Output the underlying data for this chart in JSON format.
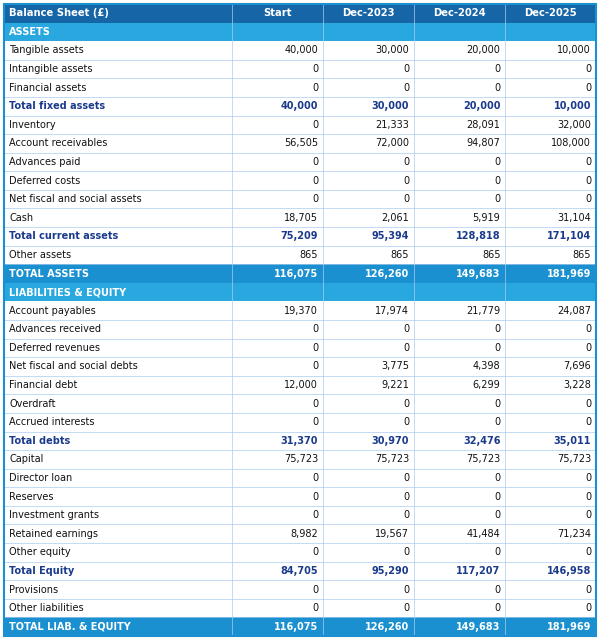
{
  "columns": [
    "Balance Sheet (£)",
    "Start",
    "Dec-2023",
    "Dec-2024",
    "Dec-2025"
  ],
  "header_bg": "#1565a7",
  "header_text": "#ffffff",
  "section_bg": "#29a8e0",
  "section_text": "#ffffff",
  "total_bg": "#1a90d0",
  "total_text": "#ffffff",
  "subtotal_text": "#1a3a8c",
  "data_text": "#111111",
  "row_bg": "#ffffff",
  "border_color": "#aaccee",
  "outer_border": "#1a90d0",
  "rows": [
    {
      "label": "ASSETS",
      "values": [
        "",
        "",
        "",
        ""
      ],
      "type": "section"
    },
    {
      "label": "Tangible assets",
      "values": [
        "40,000",
        "30,000",
        "20,000",
        "10,000"
      ],
      "type": "data"
    },
    {
      "label": "Intangible assets",
      "values": [
        "0",
        "0",
        "0",
        "0"
      ],
      "type": "data"
    },
    {
      "label": "Financial assets",
      "values": [
        "0",
        "0",
        "0",
        "0"
      ],
      "type": "data"
    },
    {
      "label": "Total fixed assets",
      "values": [
        "40,000",
        "30,000",
        "20,000",
        "10,000"
      ],
      "type": "subtotal"
    },
    {
      "label": "Inventory",
      "values": [
        "0",
        "21,333",
        "28,091",
        "32,000"
      ],
      "type": "data"
    },
    {
      "label": "Account receivables",
      "values": [
        "56,505",
        "72,000",
        "94,807",
        "108,000"
      ],
      "type": "data"
    },
    {
      "label": "Advances paid",
      "values": [
        "0",
        "0",
        "0",
        "0"
      ],
      "type": "data"
    },
    {
      "label": "Deferred costs",
      "values": [
        "0",
        "0",
        "0",
        "0"
      ],
      "type": "data"
    },
    {
      "label": "Net fiscal and social assets",
      "values": [
        "0",
        "0",
        "0",
        "0"
      ],
      "type": "data"
    },
    {
      "label": "Cash",
      "values": [
        "18,705",
        "2,061",
        "5,919",
        "31,104"
      ],
      "type": "data"
    },
    {
      "label": "Total current assets",
      "values": [
        "75,209",
        "95,394",
        "128,818",
        "171,104"
      ],
      "type": "subtotal"
    },
    {
      "label": "Other assets",
      "values": [
        "865",
        "865",
        "865",
        "865"
      ],
      "type": "data"
    },
    {
      "label": "TOTAL ASSETS",
      "values": [
        "116,075",
        "126,260",
        "149,683",
        "181,969"
      ],
      "type": "total"
    },
    {
      "label": "LIABILITIES & EQUITY",
      "values": [
        "",
        "",
        "",
        ""
      ],
      "type": "section"
    },
    {
      "label": "Account payables",
      "values": [
        "19,370",
        "17,974",
        "21,779",
        "24,087"
      ],
      "type": "data"
    },
    {
      "label": "Advances received",
      "values": [
        "0",
        "0",
        "0",
        "0"
      ],
      "type": "data"
    },
    {
      "label": "Deferred revenues",
      "values": [
        "0",
        "0",
        "0",
        "0"
      ],
      "type": "data"
    },
    {
      "label": "Net fiscal and social debts",
      "values": [
        "0",
        "3,775",
        "4,398",
        "7,696"
      ],
      "type": "data"
    },
    {
      "label": "Financial debt",
      "values": [
        "12,000",
        "9,221",
        "6,299",
        "3,228"
      ],
      "type": "data"
    },
    {
      "label": "Overdraft",
      "values": [
        "0",
        "0",
        "0",
        "0"
      ],
      "type": "data"
    },
    {
      "label": "Accrued interests",
      "values": [
        "0",
        "0",
        "0",
        "0"
      ],
      "type": "data"
    },
    {
      "label": "Total debts",
      "values": [
        "31,370",
        "30,970",
        "32,476",
        "35,011"
      ],
      "type": "subtotal"
    },
    {
      "label": "Capital",
      "values": [
        "75,723",
        "75,723",
        "75,723",
        "75,723"
      ],
      "type": "data"
    },
    {
      "label": "Director loan",
      "values": [
        "0",
        "0",
        "0",
        "0"
      ],
      "type": "data"
    },
    {
      "label": "Reserves",
      "values": [
        "0",
        "0",
        "0",
        "0"
      ],
      "type": "data"
    },
    {
      "label": "Investment grants",
      "values": [
        "0",
        "0",
        "0",
        "0"
      ],
      "type": "data"
    },
    {
      "label": "Retained earnings",
      "values": [
        "8,982",
        "19,567",
        "41,484",
        "71,234"
      ],
      "type": "data"
    },
    {
      "label": "Other equity",
      "values": [
        "0",
        "0",
        "0",
        "0"
      ],
      "type": "data"
    },
    {
      "label": "Total Equity",
      "values": [
        "84,705",
        "95,290",
        "117,207",
        "146,958"
      ],
      "type": "subtotal"
    },
    {
      "label": "Provisions",
      "values": [
        "0",
        "0",
        "0",
        "0"
      ],
      "type": "data"
    },
    {
      "label": "Other liabilities",
      "values": [
        "0",
        "0",
        "0",
        "0"
      ],
      "type": "data"
    },
    {
      "label": "TOTAL LIAB. & EQUITY",
      "values": [
        "116,075",
        "126,260",
        "149,683",
        "181,969"
      ],
      "type": "total"
    }
  ]
}
